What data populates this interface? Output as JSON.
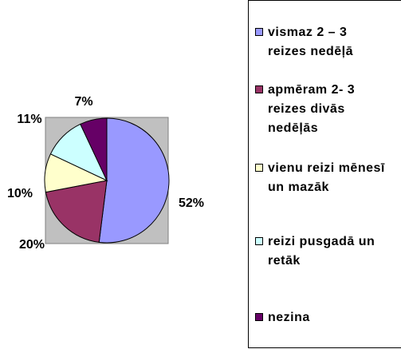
{
  "chart_data": {
    "type": "pie",
    "categories": [
      "vismaz 2 – 3 reizes nedēļā",
      "apmēram 2- 3 reizes divās nedēļās",
      "vienu reizi mēnesī un mazāk",
      "reizi pusgadā un retāk",
      "nezina"
    ],
    "values": [
      52,
      20,
      10,
      11,
      7
    ],
    "value_labels": [
      "52%",
      "20%",
      "10%",
      "11%",
      "7%"
    ],
    "colors": [
      "#9999ff",
      "#993366",
      "#ffffcc",
      "#ccffff",
      "#660066"
    ],
    "legend": "right"
  }
}
